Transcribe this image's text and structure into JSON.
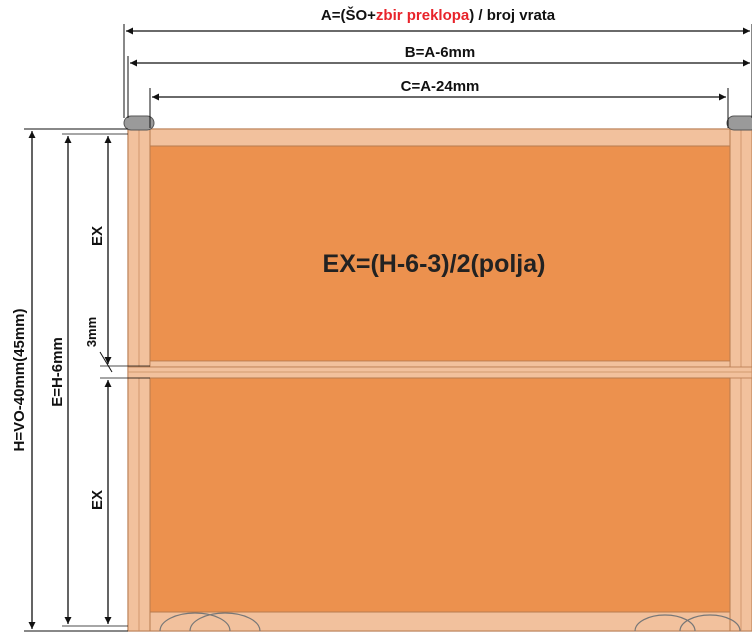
{
  "dimensions": {
    "a_prefix": "A=(ŠO+",
    "a_highlight": "zbir preklopa",
    "a_suffix": ") / broj vrata",
    "b_label": "B=A-6mm",
    "c_label": "C=A-24mm",
    "h_label": "H=VO-40mm(45mm)",
    "e_label": "E=H-6mm",
    "ex_top_label": "EX",
    "gap_label": "3mm",
    "ex_bottom_label": "EX"
  },
  "formula": {
    "text": "EX=(H-6-3)/2(polja)"
  },
  "colors": {
    "panel_fill": "#EC914E",
    "frame_fill": "#F2C19D",
    "frame_stroke": "#B77A4F",
    "line": "#111111",
    "highlight": "#E8232A",
    "roller": "#9A9A9A"
  }
}
